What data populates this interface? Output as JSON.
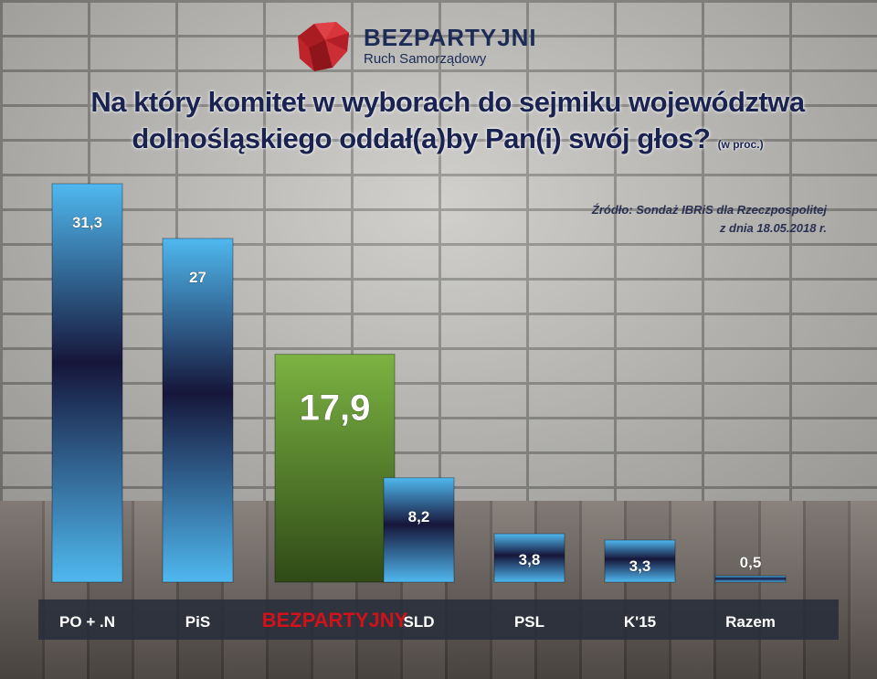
{
  "brand": {
    "name": "BEZPARTYJNI",
    "subtitle": "Ruch Samorządowy"
  },
  "header": {
    "title_line1": "Na który komitet w wyborach do sejmiku województwa",
    "title_line2": "dolnośląskiego oddał(a)by Pan(i) swój głos?",
    "unit_note": "(w proc.)"
  },
  "source": {
    "line1": "Źródło: Sondaż IBRiS dla Rzeczpospolitej",
    "line2": "z dnia 18.05.2018 r."
  },
  "colors": {
    "bar_blue_light": "#4fb8ef",
    "bar_blue_dark": "#16163a",
    "bar_green_light": "#7cb342",
    "bar_green_dark": "#2f4a17",
    "highlight_label": "#d0121a",
    "label_text": "#ffffff"
  },
  "chart_data": {
    "type": "bar",
    "title": "Na który komitet w wyborach do sejmiku województwa dolnośląskiego oddał(a)by Pan(i) swój głos?",
    "unit": "(w proc.)",
    "categories": [
      "PO + .N",
      "PiS",
      "BEZPARTYJNY",
      "SLD",
      "PSL",
      "K'15",
      "Razem"
    ],
    "values": [
      31.3,
      27,
      17.9,
      8.2,
      3.8,
      3.3,
      0.5
    ],
    "value_labels": [
      "31,3",
      "27",
      "17,9",
      "8,2",
      "3,8",
      "3,3",
      "0,5"
    ],
    "highlight_index": 2,
    "ylim": [
      0,
      31.3
    ],
    "grid": false,
    "legend": "none"
  }
}
